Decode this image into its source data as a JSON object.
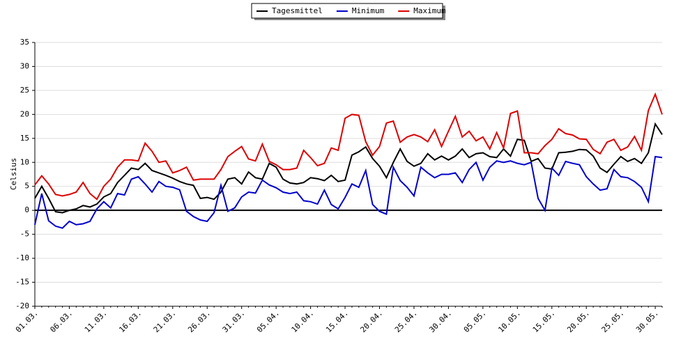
{
  "chart_data": {
    "type": "line",
    "y_label": "Celsius",
    "categories": [
      "01.03.",
      null,
      null,
      null,
      null,
      "06.03.",
      null,
      null,
      null,
      null,
      "11.03.",
      null,
      null,
      null,
      null,
      "16.03.",
      null,
      null,
      null,
      null,
      "21.03.",
      null,
      null,
      null,
      null,
      "26.03.",
      null,
      null,
      null,
      null,
      "31.03.",
      null,
      null,
      null,
      null,
      "05.04.",
      null,
      null,
      null,
      null,
      "10.04.",
      null,
      null,
      null,
      null,
      "15.04.",
      null,
      null,
      null,
      null,
      "20.04.",
      null,
      null,
      null,
      null,
      "25.04.",
      null,
      null,
      null,
      null,
      "30.04.",
      null,
      null,
      null,
      null,
      "05.05.",
      null,
      null,
      null,
      null,
      "10.05.",
      null,
      null,
      null,
      null,
      "15.05.",
      null,
      null,
      null,
      null,
      "20.05.",
      null,
      null,
      null,
      null,
      "25.05.",
      null,
      null,
      null,
      null,
      "30.05.",
      null
    ],
    "series": [
      {
        "name": "Tagesmittel",
        "color": "#000000",
        "values": [
          2.5,
          5,
          2.5,
          -0.3,
          -0.5,
          0,
          0.3,
          1,
          0.7,
          1.3,
          2.8,
          3.5,
          5.8,
          7.3,
          8.8,
          8.5,
          9.8,
          8.3,
          7.8,
          7.3,
          6.7,
          6,
          5.5,
          5.2,
          2.5,
          2.7,
          2.3,
          3.8,
          6.5,
          6.8,
          5.5,
          8,
          6.8,
          6.5,
          9.8,
          9,
          6.5,
          5.7,
          5.5,
          5.8,
          6.8,
          6.6,
          6.2,
          7.3,
          6,
          6.3,
          11.5,
          12.2,
          13.2,
          10.8,
          9.2,
          6.8,
          10,
          12.8,
          10.2,
          9.2,
          9.8,
          11.8,
          10.5,
          11.3,
          10.5,
          11.3,
          12.8,
          11,
          11.8,
          12,
          11.2,
          11,
          12.8,
          11.3,
          14.8,
          14.6,
          10.2,
          10.8,
          8.8,
          8.6,
          12,
          12.1,
          12.3,
          12.7,
          12.6,
          11.3,
          8.8,
          7.9,
          9.6,
          11.2,
          10.2,
          10.8,
          9.8,
          12,
          18,
          15.8
        ]
      },
      {
        "name": "Minimum",
        "color": "#0000cc",
        "values": [
          -3,
          3.5,
          -2.2,
          -3.3,
          -3.7,
          -2.3,
          -3,
          -2.8,
          -2.3,
          0.3,
          1.8,
          0.5,
          3.5,
          3.2,
          6.5,
          7,
          5.5,
          3.8,
          6,
          5,
          4.8,
          4.3,
          -0.2,
          -1.3,
          -2,
          -2.3,
          -0.5,
          5.2,
          -0.2,
          0.5,
          2.8,
          3.8,
          3.6,
          6.3,
          5.3,
          4.7,
          3.8,
          3.5,
          3.8,
          2,
          1.8,
          1.3,
          4.2,
          1.2,
          0.3,
          2.7,
          5.5,
          4.8,
          8.3,
          1.2,
          -0.2,
          -0.8,
          9,
          6.2,
          4.8,
          3,
          9,
          7.8,
          6.8,
          7.5,
          7.5,
          7.8,
          5.8,
          8.5,
          10,
          6.3,
          9,
          10.3,
          10,
          10.3,
          9.8,
          9.5,
          10,
          2.5,
          0,
          8.8,
          7.3,
          10.2,
          9.8,
          9.5,
          7,
          5.5,
          4.2,
          4.5,
          8.5,
          7,
          6.8,
          6,
          4.8,
          1.8,
          11.2,
          11
        ]
      },
      {
        "name": "Maximum",
        "color": "#dd0000",
        "values": [
          5.3,
          7.2,
          5.5,
          3.3,
          3,
          3.3,
          3.8,
          5.8,
          3.5,
          2.3,
          5,
          6.5,
          9,
          10.5,
          10.5,
          10.3,
          14,
          12.3,
          10,
          10.3,
          7.8,
          8.3,
          9,
          6.3,
          6.5,
          6.5,
          6.5,
          8.5,
          11.2,
          12.3,
          13.3,
          10.7,
          10.3,
          13.8,
          10.2,
          9.5,
          8.5,
          8.5,
          8.8,
          12.5,
          11,
          9.3,
          9.8,
          13,
          12.5,
          19.2,
          20,
          19.8,
          14.3,
          11.5,
          13.3,
          18.2,
          18.6,
          14.2,
          15.3,
          15.8,
          15.3,
          14.3,
          16.8,
          13.3,
          16.5,
          19.6,
          15.3,
          16.5,
          14.5,
          15.3,
          12.8,
          16.2,
          13,
          20.2,
          20.7,
          12,
          12,
          11.8,
          13.5,
          14.8,
          17,
          16,
          15.7,
          14.9,
          14.8,
          12.7,
          11.8,
          14.2,
          14.8,
          12.5,
          13.2,
          15.4,
          12.5,
          20.8,
          24.2,
          20
        ]
      }
    ],
    "ylim": [
      -20,
      35
    ],
    "yticks": [
      -20,
      -15,
      -10,
      -5,
      0,
      5,
      10,
      15,
      20,
      25,
      30,
      35
    ],
    "grid": true,
    "zero_line": true,
    "legend": "top"
  }
}
